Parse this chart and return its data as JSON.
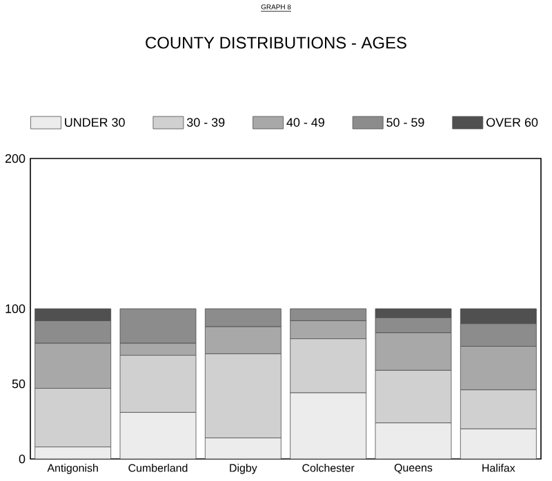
{
  "chart_data": {
    "type": "bar",
    "stacked": true,
    "title": "COUNTY DISTRIBUTIONS - AGES",
    "annotations": [
      "GRAPH 8"
    ],
    "categories": [
      "Antigonish",
      "Cumberland",
      "Digby",
      "Colchester",
      "Queens",
      "Halifax"
    ],
    "series": [
      {
        "name": "UNDER 30",
        "color": "#ececec",
        "values": [
          8,
          31,
          14,
          44,
          24,
          20
        ]
      },
      {
        "name": "30 - 39",
        "color": "#d0d0d0",
        "values": [
          39,
          38,
          56,
          36,
          35,
          26
        ]
      },
      {
        "name": "40 - 49",
        "color": "#a8a8a8",
        "values": [
          30,
          8,
          18,
          12,
          25,
          29
        ]
      },
      {
        "name": "50 - 59",
        "color": "#8c8c8c",
        "values": [
          15,
          23,
          12,
          8,
          10,
          15
        ]
      },
      {
        "name": "OVER 60",
        "color": "#505050",
        "values": [
          8,
          0,
          0,
          0,
          6,
          10
        ]
      }
    ],
    "ylim": [
      0,
      200
    ],
    "yticks": [
      0,
      50,
      100,
      200
    ],
    "grid": false,
    "legend": "top"
  }
}
